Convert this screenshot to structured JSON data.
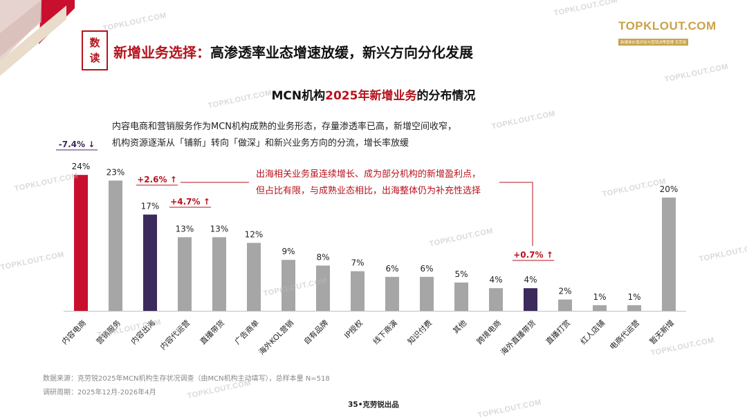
{
  "badge": {
    "line1": "数",
    "line2": "读"
  },
  "headline": {
    "part1": "新增业务选择：",
    "part2": "高渗透率业态增速放缓，新兴方向分化发展"
  },
  "logo": {
    "brand": "TOPKLOUT.COM",
    "tag": "新媒体价值评估与营销决策管理 克劳锐"
  },
  "watermark": "TOPKLOUT.COM",
  "chart_data": {
    "type": "bar",
    "title_prefix": "MCN机构",
    "title_highlight": "2025年新增业务",
    "title_suffix": "的分布情况",
    "categories": [
      "内容电商",
      "营销服务",
      "内容出海",
      "内容代运营",
      "直播带货",
      "广告商单",
      "海外KOL营销",
      "自有品牌",
      "IP授权",
      "线下商演",
      "知识付费",
      "其他",
      "跨境电商",
      "海外直播带货",
      "直播打赏",
      "红人店铺",
      "电商代运营",
      "暂无新增"
    ],
    "values": [
      24,
      23,
      17,
      13,
      13,
      12,
      9,
      8,
      7,
      6,
      6,
      5,
      4,
      4,
      2,
      1,
      1,
      20
    ],
    "value_labels": [
      "24%",
      "23%",
      "17%",
      "13%",
      "13%",
      "12%",
      "9%",
      "8%",
      "7%",
      "6%",
      "6%",
      "5%",
      "4%",
      "4%",
      "2%",
      "1%",
      "1%",
      "20%"
    ],
    "bar_colors": [
      "#c8102e",
      "#a6a6a6",
      "#3b2a5c",
      "#a6a6a6",
      "#a6a6a6",
      "#a6a6a6",
      "#a6a6a6",
      "#a6a6a6",
      "#a6a6a6",
      "#a6a6a6",
      "#a6a6a6",
      "#a6a6a6",
      "#a6a6a6",
      "#3b2a5c",
      "#a6a6a6",
      "#a6a6a6",
      "#a6a6a6",
      "#a6a6a6"
    ],
    "ylim": [
      0,
      30
    ],
    "growth_labels": [
      {
        "index": 0,
        "text": "-7.4%",
        "arrow": "↓",
        "color": "#3b2a5c"
      },
      {
        "index": 2,
        "text": "+2.6%",
        "arrow": "↑",
        "color": "#b5121b"
      },
      {
        "index": 3,
        "text": "+4.7%",
        "arrow": "↑",
        "color": "#b5121b"
      },
      {
        "index": 13,
        "text": "+0.7%",
        "arrow": "↑",
        "color": "#b5121b"
      }
    ]
  },
  "description": {
    "line1": "内容电商和营销服务作为MCN机构成熟的业务形态，存量渗透率已高，新增空间收窄，",
    "line2": "机构资源逐渐从「铺新」转向「做深」和新兴业务方向的分流，增长率放缓"
  },
  "annotation": {
    "line1": "出海相关业务虽连续增长、成为部分机构的新增盈利点，",
    "line2": "但占比有限，与成熟业态相比，出海整体仍为补充性选择"
  },
  "source": {
    "line1": "数据来源：克劳锐2025年MCN机构生存状况调查（由MCN机构主动填写），总样本量 N=518",
    "line2": "调研周期：2025年12月-2026年4月"
  },
  "page_number": "35•克劳锐出品"
}
